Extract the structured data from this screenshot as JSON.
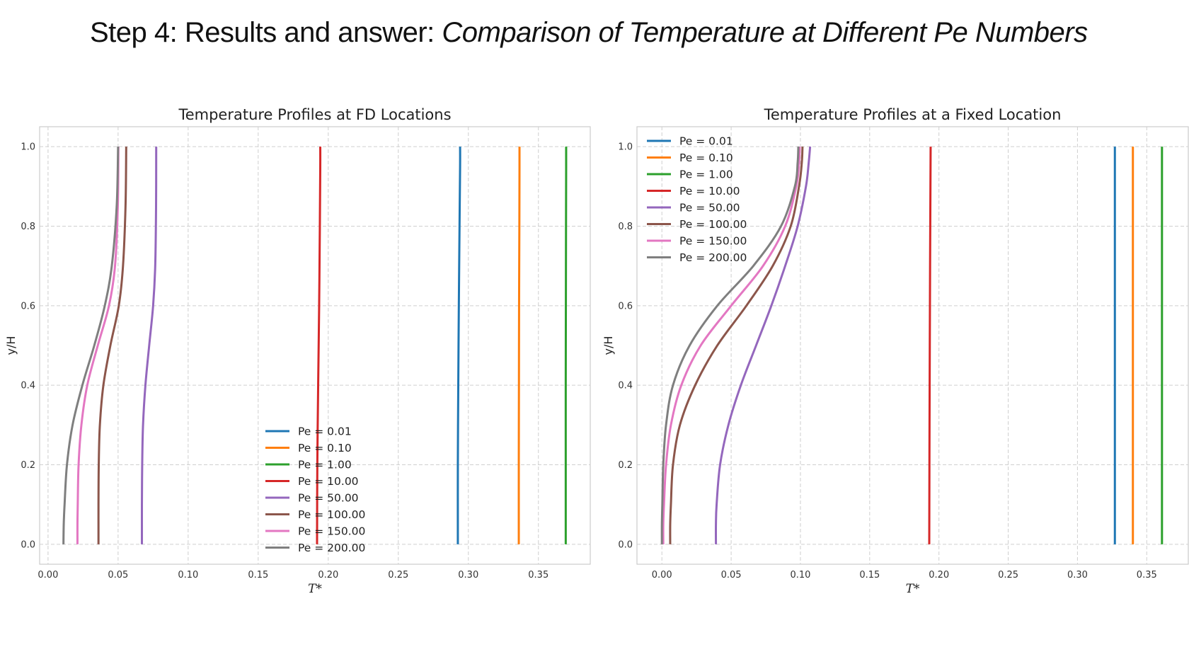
{
  "slide": {
    "title_prefix": "Step 4: Results and answer: ",
    "title_emphasis": "Comparison of Temperature at Different Pe Numbers"
  },
  "chart_data": [
    {
      "type": "line",
      "title": "Temperature Profiles at FD Locations",
      "xlabel": "T*",
      "ylabel": "y/H",
      "xlim": [
        -0.006,
        0.387
      ],
      "ylim": [
        -0.05,
        1.05
      ],
      "xticks": [
        "0.00",
        "0.05",
        "0.10",
        "0.15",
        "0.20",
        "0.25",
        "0.30",
        "0.35"
      ],
      "yticks": [
        "0.0",
        "0.2",
        "0.4",
        "0.6",
        "0.8",
        "1.0"
      ],
      "grid": true,
      "legend_location": "lower center",
      "series": [
        {
          "name": "Pe = 0.01",
          "color": "#1f77b4",
          "x": [
            0.2925,
            0.2925,
            0.2928,
            0.2932,
            0.2937,
            0.2941,
            0.2941
          ],
          "y": [
            0.0,
            0.2,
            0.4,
            0.6,
            0.8,
            0.95,
            1.0
          ]
        },
        {
          "name": "Pe = 0.10",
          "color": "#ff7f0e",
          "x": [
            0.336,
            0.336,
            0.3361,
            0.3362,
            0.3364,
            0.3365,
            0.3365
          ],
          "y": [
            0.0,
            0.2,
            0.4,
            0.6,
            0.8,
            0.95,
            1.0
          ]
        },
        {
          "name": "Pe = 1.00",
          "color": "#2ca02c",
          "x": [
            0.3695,
            0.3695,
            0.3695,
            0.3696,
            0.3697,
            0.3698,
            0.3698
          ],
          "y": [
            0.0,
            0.2,
            0.4,
            0.6,
            0.8,
            0.95,
            1.0
          ]
        },
        {
          "name": "Pe = 10.00",
          "color": "#d62728",
          "x": [
            0.192,
            0.1922,
            0.1928,
            0.1935,
            0.194,
            0.1943,
            0.1943
          ],
          "y": [
            0.0,
            0.2,
            0.4,
            0.6,
            0.8,
            0.95,
            1.0
          ]
        },
        {
          "name": "Pe = 50.00",
          "color": "#9467bd",
          "x": [
            0.067,
            0.067,
            0.067,
            0.0672,
            0.0678,
            0.0695,
            0.0722,
            0.075,
            0.0765,
            0.0771,
            0.0772
          ],
          "y": [
            0.0,
            0.05,
            0.1,
            0.2,
            0.3,
            0.4,
            0.5,
            0.6,
            0.7,
            0.85,
            1.0
          ]
        },
        {
          "name": "Pe = 100.00",
          "color": "#8c564b",
          "x": [
            0.036,
            0.036,
            0.036,
            0.0362,
            0.037,
            0.0395,
            0.0445,
            0.0505,
            0.0535,
            0.0553,
            0.0558
          ],
          "y": [
            0.0,
            0.05,
            0.1,
            0.2,
            0.3,
            0.4,
            0.5,
            0.6,
            0.7,
            0.85,
            1.0
          ]
        },
        {
          "name": "Pe = 150.00",
          "color": "#e377c2",
          "x": [
            0.021,
            0.021,
            0.0212,
            0.0218,
            0.0238,
            0.028,
            0.0355,
            0.0435,
            0.0478,
            0.0498,
            0.0502
          ],
          "y": [
            0.0,
            0.05,
            0.1,
            0.2,
            0.3,
            0.4,
            0.5,
            0.6,
            0.7,
            0.85,
            1.0
          ]
        },
        {
          "name": "Pe = 200.00",
          "color": "#7f7f7f",
          "x": [
            0.011,
            0.0112,
            0.0118,
            0.0135,
            0.0175,
            0.0245,
            0.033,
            0.0405,
            0.0455,
            0.049,
            0.05
          ],
          "y": [
            0.0,
            0.05,
            0.1,
            0.2,
            0.3,
            0.4,
            0.5,
            0.6,
            0.7,
            0.85,
            1.0
          ]
        }
      ]
    },
    {
      "type": "line",
      "title": "Temperature Profiles at a Fixed Location",
      "xlabel": "T*",
      "ylabel": "y/H",
      "xlim": [
        -0.018,
        0.38
      ],
      "ylim": [
        -0.05,
        1.05
      ],
      "xticks": [
        "0.00",
        "0.05",
        "0.10",
        "0.15",
        "0.20",
        "0.25",
        "0.30",
        "0.35"
      ],
      "yticks": [
        "0.0",
        "0.2",
        "0.4",
        "0.6",
        "0.8",
        "1.0"
      ],
      "grid": true,
      "legend_location": "upper left",
      "series": [
        {
          "name": "Pe = 0.01",
          "color": "#1f77b4",
          "x": [
            0.327,
            0.327,
            0.327,
            0.327
          ],
          "y": [
            0.0,
            0.3,
            0.7,
            1.0
          ]
        },
        {
          "name": "Pe = 0.10",
          "color": "#ff7f0e",
          "x": [
            0.34,
            0.34,
            0.34,
            0.34
          ],
          "y": [
            0.0,
            0.3,
            0.7,
            1.0
          ]
        },
        {
          "name": "Pe = 1.00",
          "color": "#2ca02c",
          "x": [
            0.361,
            0.361,
            0.361,
            0.361
          ],
          "y": [
            0.0,
            0.3,
            0.7,
            1.0
          ]
        },
        {
          "name": "Pe = 10.00",
          "color": "#d62728",
          "x": [
            0.193,
            0.1932,
            0.1936,
            0.194
          ],
          "y": [
            0.0,
            0.3,
            0.7,
            1.0
          ]
        },
        {
          "name": "Pe = 50.00",
          "color": "#9467bd",
          "x": [
            0.039,
            0.039,
            0.0395,
            0.042,
            0.048,
            0.057,
            0.068,
            0.079,
            0.089,
            0.098,
            0.104,
            0.106,
            0.107
          ],
          "y": [
            0.0,
            0.05,
            0.1,
            0.2,
            0.3,
            0.4,
            0.5,
            0.6,
            0.7,
            0.8,
            0.9,
            0.96,
            1.0
          ]
        },
        {
          "name": "Pe = 100.00",
          "color": "#8c564b",
          "x": [
            0.006,
            0.006,
            0.0065,
            0.008,
            0.013,
            0.024,
            0.04,
            0.061,
            0.08,
            0.093,
            0.099,
            0.101,
            0.1015
          ],
          "y": [
            0.0,
            0.05,
            0.1,
            0.2,
            0.3,
            0.4,
            0.5,
            0.6,
            0.7,
            0.8,
            0.9,
            0.96,
            1.0
          ]
        },
        {
          "name": "Pe = 150.00",
          "color": "#e377c2",
          "x": [
            0.001,
            0.001,
            0.0015,
            0.003,
            0.0065,
            0.014,
            0.028,
            0.05,
            0.073,
            0.089,
            0.097,
            0.099,
            0.0995
          ],
          "y": [
            0.0,
            0.05,
            0.1,
            0.2,
            0.3,
            0.4,
            0.5,
            0.6,
            0.7,
            0.8,
            0.9,
            0.96,
            1.0
          ]
        },
        {
          "name": "Pe = 200.00",
          "color": "#7f7f7f",
          "x": [
            0.0,
            0.0,
            0.0003,
            0.001,
            0.003,
            0.008,
            0.02,
            0.04,
            0.066,
            0.086,
            0.096,
            0.098,
            0.0985
          ],
          "y": [
            0.0,
            0.05,
            0.1,
            0.2,
            0.3,
            0.4,
            0.5,
            0.6,
            0.7,
            0.8,
            0.9,
            0.96,
            1.0
          ]
        }
      ]
    }
  ]
}
